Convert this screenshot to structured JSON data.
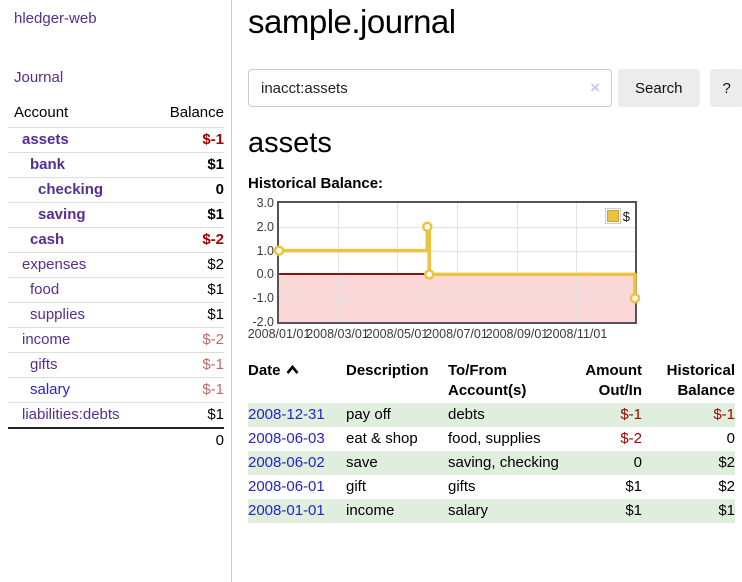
{
  "sidebar": {
    "brand": "hledger-web",
    "nav_journal": "Journal",
    "accounts_table": {
      "headers": {
        "account": "Account",
        "balance": "Balance"
      },
      "rows": [
        {
          "name": "assets",
          "balance": "$-1"
        },
        {
          "name": "bank",
          "balance": "$1"
        },
        {
          "name": "checking",
          "balance": "0"
        },
        {
          "name": "saving",
          "balance": "$1"
        },
        {
          "name": "cash",
          "balance": "$-2"
        },
        {
          "name": "expenses",
          "balance": "$2"
        },
        {
          "name": "food",
          "balance": "$1"
        },
        {
          "name": "supplies",
          "balance": "$1"
        },
        {
          "name": "income",
          "balance": "$-2"
        },
        {
          "name": "gifts",
          "balance": "$-1"
        },
        {
          "name": "salary",
          "balance": "$-1"
        },
        {
          "name": "liabilities:debts",
          "balance": "$1"
        }
      ],
      "total": "0"
    }
  },
  "header": {
    "title": "sample.journal"
  },
  "search": {
    "query": "inacct:assets",
    "clear_icon": "×",
    "button": "Search",
    "help_button": "?"
  },
  "account_page": {
    "heading": "assets",
    "chart_label": "Historical Balance:"
  },
  "chart_data": {
    "type": "line",
    "style": "step",
    "title": "Historical Balance of assets",
    "series": [
      {
        "name": "$",
        "points": [
          {
            "date": "2008-01-01",
            "value": 1
          },
          {
            "date": "2008-06-01",
            "value": 2
          },
          {
            "date": "2008-06-03",
            "value": 0
          },
          {
            "date": "2008-12-31",
            "value": -1
          }
        ]
      }
    ],
    "x_range": [
      "2008-01-01",
      "2008-12-31"
    ],
    "ylim": [
      -2,
      3
    ],
    "y_ticks": [
      {
        "value": 3,
        "label": "3.0"
      },
      {
        "value": 2,
        "label": "2.0"
      },
      {
        "value": 1,
        "label": "1.0"
      },
      {
        "value": 0,
        "label": "0.0"
      },
      {
        "value": -1,
        "label": "-1.0"
      },
      {
        "value": -2,
        "label": "-2.0"
      }
    ],
    "x_ticks": [
      {
        "date": "2008-01-01",
        "label": "2008/01/01"
      },
      {
        "date": "2008-03-01",
        "label": "2008/03/01"
      },
      {
        "date": "2008-05-01",
        "label": "2008/05/01"
      },
      {
        "date": "2008-07-01",
        "label": "2008/07/01"
      },
      {
        "date": "2008-09-01",
        "label": "2008/09/01"
      },
      {
        "date": "2008-11-01",
        "label": "2008/11/01"
      }
    ],
    "legend": {
      "label": "$",
      "position": "top-right"
    },
    "colors": {
      "line": "#edc240",
      "marker_fill": "#ffffff",
      "negative_fill": "#fbd7d7",
      "zero_line": "#8b1515",
      "grid": "#e2e2e2",
      "border": "#545454"
    },
    "grid": true
  },
  "register": {
    "columns": [
      "Date",
      "Description",
      "To/From Account(s)",
      "Amount Out/In",
      "Historical Balance"
    ],
    "sort": {
      "column": "Date",
      "direction": "ascending"
    },
    "rows": [
      {
        "date": "2008-12-31",
        "description": "pay off",
        "accounts": "debts",
        "amount": "$-1",
        "balance": "$-1"
      },
      {
        "date": "2008-06-03",
        "description": "eat & shop",
        "accounts": "food, supplies",
        "amount": "$-2",
        "balance": "0"
      },
      {
        "date": "2008-06-02",
        "description": "save",
        "accounts": "saving, checking",
        "amount": "0",
        "balance": "$2"
      },
      {
        "date": "2008-06-01",
        "description": "gift",
        "accounts": "gifts",
        "amount": "$1",
        "balance": "$2"
      },
      {
        "date": "2008-01-01",
        "description": "income",
        "accounts": "salary",
        "amount": "$1",
        "balance": "$1"
      }
    ]
  },
  "colors": {
    "accent_purple": "#552e91",
    "link_blue": "#2323cc",
    "negative_strong": "#a40000",
    "negative_light": "#c06a6a",
    "row_stripe_green": "#dfeedd"
  }
}
